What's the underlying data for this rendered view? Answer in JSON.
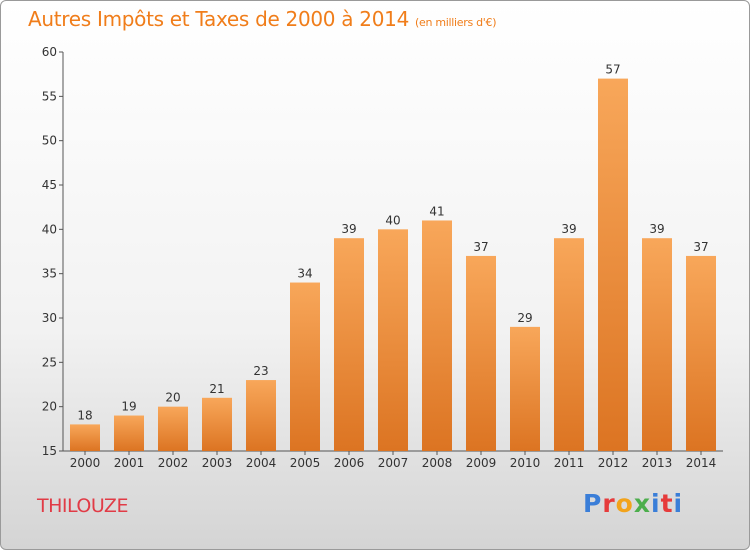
{
  "header": {
    "title": "Autres Impôts et Taxes de 2000 à 2014",
    "unit": "(en milliers d'€)"
  },
  "footer": {
    "commune": "THILOUZE",
    "logo_text": "Proxiti"
  },
  "colors": {
    "title": "#f07d1a",
    "commune": "#e13b46",
    "bar_light": "#f8a75a",
    "bar_dark": "#dc7422",
    "logo": [
      "#3a7ed8",
      "#e63b3b",
      "#f2a31b",
      "#4cae4c",
      "#3a7ed8",
      "#e63b3b",
      "#3a7ed8"
    ]
  },
  "chart_data": {
    "type": "bar",
    "categories": [
      "2000",
      "2001",
      "2002",
      "2003",
      "2004",
      "2005",
      "2006",
      "2007",
      "2008",
      "2009",
      "2010",
      "2011",
      "2012",
      "2013",
      "2014"
    ],
    "values": [
      18,
      19,
      20,
      21,
      23,
      34,
      39,
      40,
      41,
      37,
      29,
      39,
      57,
      39,
      37
    ],
    "ylim": [
      15,
      60
    ],
    "yticks": [
      15,
      20,
      25,
      30,
      35,
      40,
      45,
      50,
      55,
      60
    ],
    "grid": false,
    "legend": "none"
  }
}
